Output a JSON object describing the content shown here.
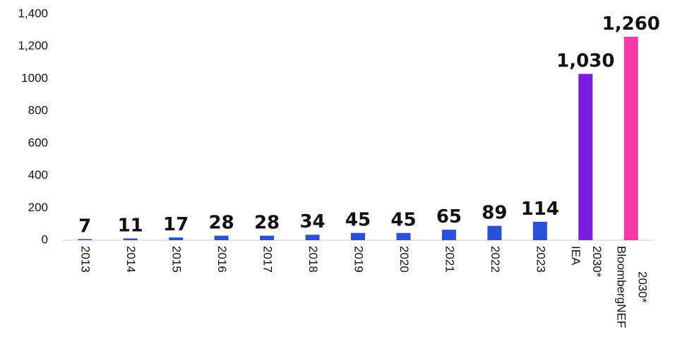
{
  "chart_data": {
    "type": "bar",
    "categories": [
      "2013",
      "2014",
      "2015",
      "2016",
      "2017",
      "2018",
      "2019",
      "2020",
      "2021",
      "2022",
      "2023",
      [
        "IEA",
        "2030*"
      ],
      [
        "BloombergNEF",
        "2030*"
      ]
    ],
    "values": [
      7,
      11,
      17,
      28,
      28,
      34,
      45,
      45,
      65,
      89,
      114,
      1030,
      1260
    ],
    "value_labels": [
      "7",
      "11",
      "17",
      "28",
      "28",
      "34",
      "45",
      "45",
      "65",
      "89",
      "114",
      "1,030",
      "1,260"
    ],
    "colors": [
      "#2a4fdb",
      "#2a4fdb",
      "#2a4fdb",
      "#2a4fdb",
      "#2a4fdb",
      "#2a4fdb",
      "#2a4fdb",
      "#2a4fdb",
      "#2a4fdb",
      "#2a4fdb",
      "#2a4fdb",
      "#7a1de0",
      "#f73aa8"
    ],
    "ylim": [
      0,
      1400
    ],
    "yticks": [
      0,
      200,
      400,
      600,
      800,
      1000,
      {
        "value": 1200,
        "label": "1,200"
      },
      {
        "value": 1400,
        "label": "1,400"
      }
    ],
    "grid": false
  }
}
